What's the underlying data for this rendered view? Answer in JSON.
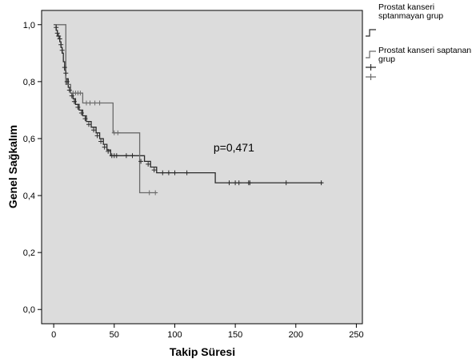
{
  "chart_data": {
    "type": "line",
    "xlabel": "Takip Süresi",
    "ylabel": "Genel Sağkalım",
    "xlim": [
      -10,
      255
    ],
    "ylim": [
      -0.05,
      1.05
    ],
    "x_ticks": [
      0,
      50,
      100,
      150,
      200,
      250
    ],
    "y_ticks": [
      0.0,
      0.2,
      0.4,
      0.6,
      0.8,
      1.0
    ],
    "x_tick_labels": [
      "0",
      "50",
      "100",
      "150",
      "200",
      "250"
    ],
    "y_tick_labels": [
      "0,0",
      "0,2",
      "0,4",
      "0,6",
      "0,8",
      "1,0"
    ],
    "grid": false,
    "legend_position": "top-right",
    "background": "#dcdcdc",
    "annotations": [
      {
        "text": "p=0,471",
        "x": 132,
        "y": 0.555
      }
    ],
    "series": [
      {
        "name": "Prostat kanseri sptanmayan grup",
        "color": "#2b2b2b",
        "steps": [
          [
            0,
            1.0
          ],
          [
            2,
            0.98
          ],
          [
            3,
            0.96
          ],
          [
            5,
            0.94
          ],
          [
            6,
            0.92
          ],
          [
            7,
            0.9
          ],
          [
            8,
            0.87
          ],
          [
            9,
            0.84
          ],
          [
            10,
            0.81
          ],
          [
            12,
            0.78
          ],
          [
            14,
            0.76
          ],
          [
            16,
            0.74
          ],
          [
            18,
            0.72
          ],
          [
            21,
            0.7
          ],
          [
            24,
            0.68
          ],
          [
            27,
            0.66
          ],
          [
            31,
            0.64
          ],
          [
            35,
            0.62
          ],
          [
            38,
            0.6
          ],
          [
            41,
            0.58
          ],
          [
            44,
            0.56
          ],
          [
            47,
            0.54
          ],
          [
            55,
            0.54
          ],
          [
            75,
            0.52
          ],
          [
            80,
            0.5
          ],
          [
            85,
            0.48
          ],
          [
            133,
            0.48
          ],
          [
            133.5,
            0.445
          ],
          [
            222,
            0.445
          ]
        ],
        "censored": [
          [
            2,
            0.99
          ],
          [
            3,
            0.97
          ],
          [
            4,
            0.96
          ],
          [
            5,
            0.95
          ],
          [
            6,
            0.93
          ],
          [
            7,
            0.91
          ],
          [
            9,
            0.85
          ],
          [
            10,
            0.83
          ],
          [
            11,
            0.8
          ],
          [
            13,
            0.77
          ],
          [
            15,
            0.75
          ],
          [
            17,
            0.73
          ],
          [
            20,
            0.71
          ],
          [
            23,
            0.69
          ],
          [
            26,
            0.67
          ],
          [
            29,
            0.65
          ],
          [
            33,
            0.63
          ],
          [
            36,
            0.61
          ],
          [
            39,
            0.59
          ],
          [
            42,
            0.57
          ],
          [
            45,
            0.555
          ],
          [
            48,
            0.54
          ],
          [
            50,
            0.54
          ],
          [
            52,
            0.54
          ],
          [
            60,
            0.54
          ],
          [
            65,
            0.54
          ],
          [
            72,
            0.52
          ],
          [
            78,
            0.51
          ],
          [
            83,
            0.49
          ],
          [
            90,
            0.48
          ],
          [
            95,
            0.48
          ],
          [
            100,
            0.48
          ],
          [
            110,
            0.48
          ],
          [
            145,
            0.445
          ],
          [
            150,
            0.445
          ],
          [
            153,
            0.445
          ],
          [
            161,
            0.445
          ],
          [
            162,
            0.445
          ],
          [
            192,
            0.445
          ],
          [
            221,
            0.445
          ]
        ]
      },
      {
        "name": "Prostat kanseri saptanan grup",
        "color": "#6a6a6a",
        "steps": [
          [
            0,
            1.0
          ],
          [
            10,
            0.79
          ],
          [
            14,
            0.76
          ],
          [
            22,
            0.76
          ],
          [
            24,
            0.725
          ],
          [
            48,
            0.725
          ],
          [
            49,
            0.62
          ],
          [
            70,
            0.62
          ],
          [
            71,
            0.41
          ],
          [
            85,
            0.41
          ]
        ],
        "censored": [
          [
            16,
            0.76
          ],
          [
            18,
            0.76
          ],
          [
            20,
            0.76
          ],
          [
            22,
            0.76
          ],
          [
            27,
            0.725
          ],
          [
            30,
            0.725
          ],
          [
            34,
            0.725
          ],
          [
            38,
            0.725
          ],
          [
            50,
            0.62
          ],
          [
            53,
            0.62
          ],
          [
            79,
            0.41
          ],
          [
            84,
            0.41
          ]
        ]
      }
    ]
  }
}
